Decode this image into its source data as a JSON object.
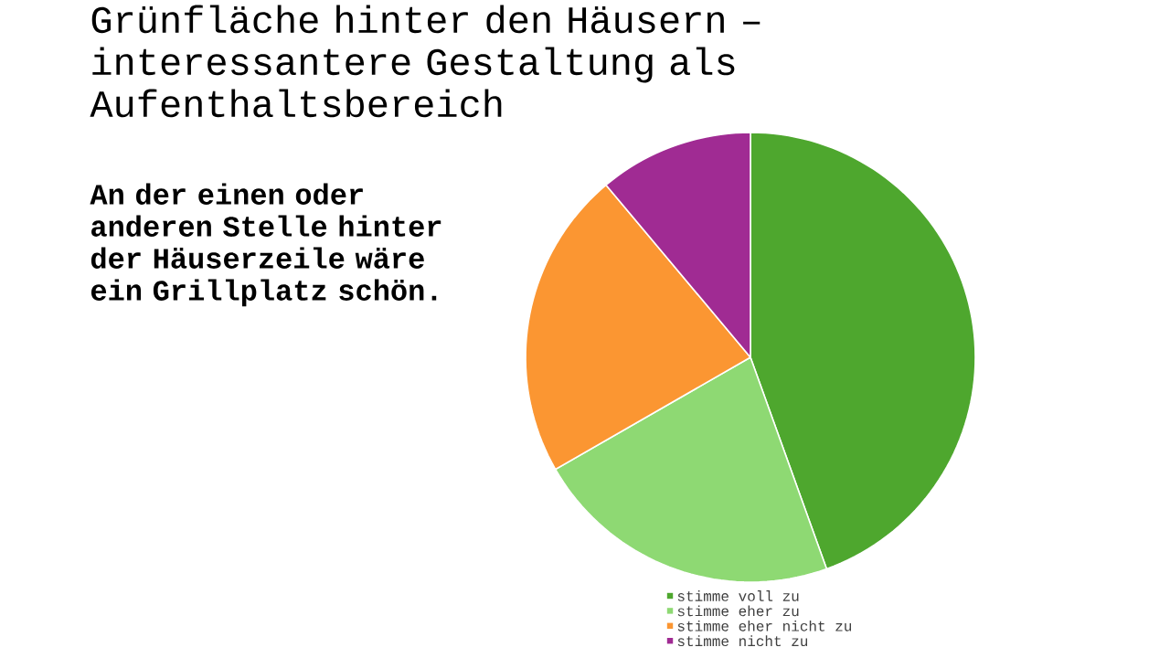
{
  "chart_data": {
    "type": "pie",
    "title": "Grünfläche hinter den Häusern – interessantere Gestaltung als Aufenthaltsbereich",
    "annotations": [
      "An der einen oder anderen Stelle hinter der Häuserzeile wäre ein Grillplatz schön."
    ],
    "categories": [
      "stimme voll zu",
      "stimme eher zu",
      "stimme eher nicht zu",
      "stimme nicht zu"
    ],
    "values": [
      44.5,
      22.2,
      22.2,
      11.1
    ],
    "colors": [
      "#4ea72e",
      "#8ed973",
      "#fb9632",
      "#a02b93"
    ],
    "legend": "bottom"
  }
}
